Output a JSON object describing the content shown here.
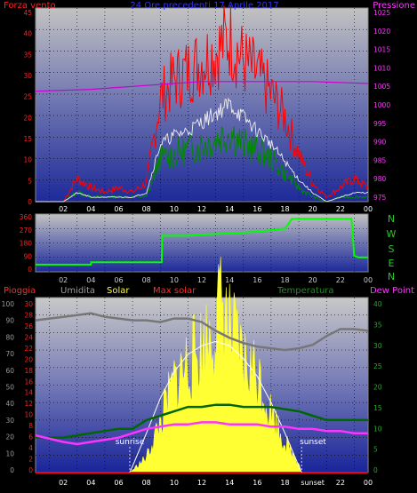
{
  "top_panel": {
    "left_label": "Forza vento",
    "title": "24 Ore precedenti 17 Aprile 2017",
    "right_label": "Pressione",
    "left_ticks": [
      "45",
      "40",
      "35",
      "30",
      "25",
      "20",
      "15",
      "10",
      "5",
      "0"
    ],
    "right_ticks": [
      "1025",
      "1020",
      "1015",
      "1010",
      "1005",
      "1000",
      "995",
      "990",
      "985",
      "980",
      "975"
    ],
    "x_ticks": [
      "02",
      "04",
      "06",
      "08",
      "10",
      "12",
      "14",
      "16",
      "18",
      "20",
      "22",
      "00"
    ]
  },
  "dir_panel": {
    "ticks": [
      "360",
      "270",
      "180",
      "90",
      "0"
    ],
    "compass": [
      "N",
      "W",
      "S",
      "E",
      "N"
    ],
    "x_ticks": [
      "02",
      "04",
      "06",
      "08",
      "10",
      "12",
      "14",
      "16",
      "18",
      "20",
      "22",
      "00"
    ]
  },
  "bottom_panel": {
    "legend": [
      {
        "key": "pioggia",
        "label": "Pioggia",
        "color": "#ff2a2a"
      },
      {
        "key": "umidita",
        "label": "Umidita",
        "color": "#9a9a9a"
      },
      {
        "key": "solar",
        "label": "Solar",
        "color": "#ffff33"
      },
      {
        "key": "max_solar",
        "label": "Max solar",
        "color": "#ff2a2a"
      },
      {
        "key": "temperatura",
        "label": "Temperatura",
        "color": "#228b22"
      },
      {
        "key": "dew_point",
        "label": "Dew Point",
        "color": "#ff33ff"
      }
    ],
    "humidity_ticks": [
      "100",
      "90",
      "80",
      "70",
      "60",
      "50",
      "40",
      "30",
      "20",
      "10",
      "0"
    ],
    "rain_ticks": [
      "30",
      "28",
      "26",
      "24",
      "22",
      "20",
      "18",
      "16",
      "14",
      "12",
      "10",
      "8",
      "6",
      "4",
      "2",
      "0"
    ],
    "temp_ticks": [
      "40",
      "35",
      "30",
      "25",
      "20",
      "15",
      "10",
      "5",
      "0"
    ],
    "x_ticks": [
      "02",
      "04",
      "06",
      "08",
      "10",
      "12",
      "14",
      "16",
      "18",
      "sunset",
      "22",
      "00"
    ],
    "sunrise_label": "sunrise",
    "sunset_label": "sunset"
  },
  "chart_data": [
    {
      "type": "line",
      "title": "24 Ore precedenti 17 Aprile 2017",
      "x_unit": "hour",
      "ylim_left": [
        0,
        45
      ],
      "ylim_right": [
        975,
        1025
      ],
      "series": [
        {
          "name": "Forza vento",
          "color": "#ff0000",
          "axis": "left",
          "points": [
            [
              0,
              0
            ],
            [
              2,
              0
            ],
            [
              3,
              5
            ],
            [
              4,
              3
            ],
            [
              5,
              2
            ],
            [
              6,
              3
            ],
            [
              7,
              2
            ],
            [
              8,
              4
            ],
            [
              9,
              22
            ],
            [
              10,
              26
            ],
            [
              11,
              28
            ],
            [
              12,
              30
            ],
            [
              13,
              32
            ],
            [
              14,
              35
            ],
            [
              15,
              30
            ],
            [
              16,
              27
            ],
            [
              17,
              23
            ],
            [
              18,
              18
            ],
            [
              19,
              10
            ],
            [
              20,
              4
            ],
            [
              21,
              1
            ],
            [
              22,
              3
            ],
            [
              23,
              5
            ],
            [
              24,
              3
            ]
          ]
        },
        {
          "name": "",
          "color": "#eeeeee",
          "axis": "left",
          "points": [
            [
              0,
              0
            ],
            [
              2,
              0
            ],
            [
              3,
              2
            ],
            [
              4,
              1
            ],
            [
              5,
              1
            ],
            [
              6,
              1
            ],
            [
              7,
              1
            ],
            [
              8,
              2
            ],
            [
              9,
              13
            ],
            [
              10,
              15
            ],
            [
              11,
              16
            ],
            [
              12,
              18
            ],
            [
              13,
              20
            ],
            [
              14,
              22
            ],
            [
              15,
              19
            ],
            [
              16,
              16
            ],
            [
              17,
              13
            ],
            [
              18,
              9
            ],
            [
              19,
              5
            ],
            [
              20,
              2
            ],
            [
              21,
              0
            ],
            [
              22,
              1
            ],
            [
              23,
              2
            ],
            [
              24,
              2
            ]
          ]
        },
        {
          "name": "",
          "color": "#008800",
          "axis": "left",
          "points": [
            [
              0,
              0
            ],
            [
              2,
              0
            ],
            [
              3,
              2
            ],
            [
              4,
              1
            ],
            [
              5,
              1
            ],
            [
              6,
              1
            ],
            [
              7,
              1
            ],
            [
              8,
              1
            ],
            [
              9,
              9
            ],
            [
              10,
              10
            ],
            [
              11,
              11
            ],
            [
              12,
              12
            ],
            [
              13,
              13
            ],
            [
              14,
              15
            ],
            [
              15,
              12
            ],
            [
              16,
              11
            ],
            [
              17,
              9
            ],
            [
              18,
              6
            ],
            [
              19,
              3
            ],
            [
              20,
              1
            ],
            [
              21,
              0
            ],
            [
              22,
              1
            ],
            [
              23,
              1
            ],
            [
              24,
              1
            ]
          ]
        },
        {
          "name": "Pressione",
          "color": "#cc00cc",
          "axis": "right",
          "points": [
            [
              0,
              1003.5
            ],
            [
              4,
              1004
            ],
            [
              8,
              1005
            ],
            [
              10,
              1005.5
            ],
            [
              12,
              1006
            ],
            [
              16,
              1006
            ],
            [
              20,
              1006
            ],
            [
              24,
              1005.5
            ]
          ]
        }
      ]
    },
    {
      "type": "line",
      "x_unit": "hour",
      "ylim": [
        0,
        360
      ],
      "series": [
        {
          "name": "",
          "color": "#00ff00",
          "points": [
            [
              0,
              45
            ],
            [
              4,
              45
            ],
            [
              4.01,
              60
            ],
            [
              9.1,
              60
            ],
            [
              9.15,
              225
            ],
            [
              11,
              225
            ],
            [
              12,
              232
            ],
            [
              14,
              240
            ],
            [
              16,
              250
            ],
            [
              18,
              270
            ],
            [
              18.5,
              330
            ],
            [
              22.8,
              330
            ],
            [
              23,
              100
            ],
            [
              23.3,
              90
            ],
            [
              24,
              90
            ]
          ]
        }
      ]
    },
    {
      "type": "line",
      "x_unit": "hour",
      "ylim_humidity": [
        0,
        100
      ],
      "ylim_rain": [
        0,
        30
      ],
      "ylim_temp": [
        0,
        40
      ],
      "sunrise_hour": 6.8,
      "sunset_hour": 19.2,
      "series": [
        {
          "name": "Umidita",
          "color": "#777777",
          "axis": "humidity",
          "points": [
            [
              0,
              87
            ],
            [
              1,
              88
            ],
            [
              2,
              89
            ],
            [
              3,
              90
            ],
            [
              4,
              91
            ],
            [
              5,
              89
            ],
            [
              6,
              88
            ],
            [
              7,
              87
            ],
            [
              8,
              87
            ],
            [
              9,
              86
            ],
            [
              10,
              88
            ],
            [
              11,
              88
            ],
            [
              12,
              86
            ],
            [
              13,
              81
            ],
            [
              14,
              77
            ],
            [
              15,
              74
            ],
            [
              16,
              72
            ],
            [
              17,
              71
            ],
            [
              18,
              70
            ],
            [
              19,
              71
            ],
            [
              20,
              73
            ],
            [
              21,
              78
            ],
            [
              22,
              82
            ],
            [
              23,
              82
            ],
            [
              24,
              81
            ]
          ]
        },
        {
          "name": "Solar",
          "color": "#ffff33",
          "axis": "temp",
          "points": [
            [
              0,
              0
            ],
            [
              6.8,
              0
            ],
            [
              8,
              3
            ],
            [
              9,
              10
            ],
            [
              10,
              18
            ],
            [
              11,
              22
            ],
            [
              12,
              25
            ],
            [
              13,
              30
            ],
            [
              13.5,
              34
            ],
            [
              14,
              28
            ],
            [
              15,
              22
            ],
            [
              16,
              20
            ],
            [
              17,
              12
            ],
            [
              18,
              6
            ],
            [
              19,
              2
            ],
            [
              19.2,
              0
            ],
            [
              24,
              0
            ]
          ]
        },
        {
          "name": "Max solar",
          "color": "#ffffff",
          "axis": "temp",
          "points": [
            [
              6.8,
              0
            ],
            [
              8,
              9
            ],
            [
              9,
              17
            ],
            [
              10,
              23
            ],
            [
              11,
              27
            ],
            [
              12,
              29
            ],
            [
              13,
              30
            ],
            [
              14,
              29
            ],
            [
              15,
              26
            ],
            [
              16,
              22
            ],
            [
              17,
              16
            ],
            [
              18,
              9
            ],
            [
              19.2,
              0
            ]
          ]
        },
        {
          "name": "Temperatura",
          "color": "#006600",
          "axis": "temp",
          "points": [
            [
              0,
              8
            ],
            [
              2,
              8
            ],
            [
              3,
              8.5
            ],
            [
              4,
              9
            ],
            [
              5,
              9.5
            ],
            [
              6,
              10
            ],
            [
              7,
              10
            ],
            [
              8,
              12
            ],
            [
              9,
              13
            ],
            [
              10,
              14
            ],
            [
              11,
              15
            ],
            [
              12,
              15
            ],
            [
              13,
              15.5
            ],
            [
              14,
              15.5
            ],
            [
              15,
              15
            ],
            [
              16,
              15
            ],
            [
              17,
              15
            ],
            [
              18,
              14.5
            ],
            [
              19,
              14
            ],
            [
              20,
              13
            ],
            [
              21,
              12
            ],
            [
              22,
              12
            ],
            [
              23,
              12
            ],
            [
              24,
              12
            ]
          ]
        },
        {
          "name": "Dew Point",
          "color": "#ff33ff",
          "axis": "temp",
          "points": [
            [
              0,
              8.5
            ],
            [
              2,
              7
            ],
            [
              3,
              6.5
            ],
            [
              4,
              7
            ],
            [
              5,
              7.5
            ],
            [
              6,
              8
            ],
            [
              7,
              9
            ],
            [
              8,
              10
            ],
            [
              9,
              10.5
            ],
            [
              10,
              11
            ],
            [
              11,
              11
            ],
            [
              12,
              11.5
            ],
            [
              13,
              11.5
            ],
            [
              14,
              11
            ],
            [
              15,
              11
            ],
            [
              16,
              11
            ],
            [
              17,
              10.5
            ],
            [
              18,
              10.5
            ],
            [
              19,
              10
            ],
            [
              20,
              10
            ],
            [
              21,
              9.5
            ],
            [
              22,
              9.5
            ],
            [
              23,
              9
            ],
            [
              24,
              9
            ]
          ]
        },
        {
          "name": "Pioggia",
          "color": "#ff0000",
          "axis": "rain",
          "points": [
            [
              0,
              0
            ],
            [
              24,
              0
            ]
          ]
        }
      ]
    }
  ]
}
